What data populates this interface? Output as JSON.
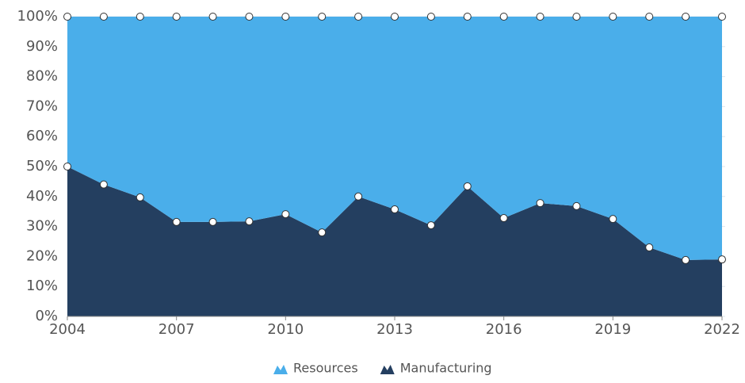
{
  "chart_data": {
    "type": "stacked_area",
    "x": [
      2004,
      2005,
      2006,
      2007,
      2008,
      2009,
      2010,
      2011,
      2012,
      2013,
      2014,
      2015,
      2016,
      2017,
      2018,
      2019,
      2020,
      2021,
      2022
    ],
    "series": [
      {
        "name": "Resources",
        "color": "#4aaeea",
        "values": [
          50,
          56,
          60.3,
          68.5,
          68.5,
          68.3,
          65.9,
          72,
          60,
          64.3,
          69.6,
          56.6,
          67.2,
          62.2,
          63.2,
          67.5,
          77,
          81.2,
          81
        ]
      },
      {
        "name": "Manufacturing",
        "color": "#243f60",
        "values": [
          50,
          44,
          39.7,
          31.5,
          31.5,
          31.7,
          34.1,
          28,
          40,
          35.7,
          30.4,
          43.4,
          32.8,
          37.8,
          36.8,
          32.5,
          23,
          18.8,
          19
        ]
      }
    ],
    "xlim": [
      2004,
      2022
    ],
    "xticks": [
      2004,
      2007,
      2010,
      2013,
      2016,
      2019,
      2022
    ],
    "ylim": [
      0,
      100
    ],
    "yticks": [
      {
        "value": 0,
        "label": "0%"
      },
      {
        "value": 10,
        "label": "10%"
      },
      {
        "value": 20,
        "label": "20%"
      },
      {
        "value": 30,
        "label": "30%"
      },
      {
        "value": 40,
        "label": "40%"
      },
      {
        "value": 50,
        "label": "50%"
      },
      {
        "value": 60,
        "label": "60%"
      },
      {
        "value": 70,
        "label": "70%"
      },
      {
        "value": 80,
        "label": "80%"
      },
      {
        "value": 90,
        "label": "90%"
      },
      {
        "value": 100,
        "label": "100%"
      }
    ],
    "legend": "bottom"
  }
}
